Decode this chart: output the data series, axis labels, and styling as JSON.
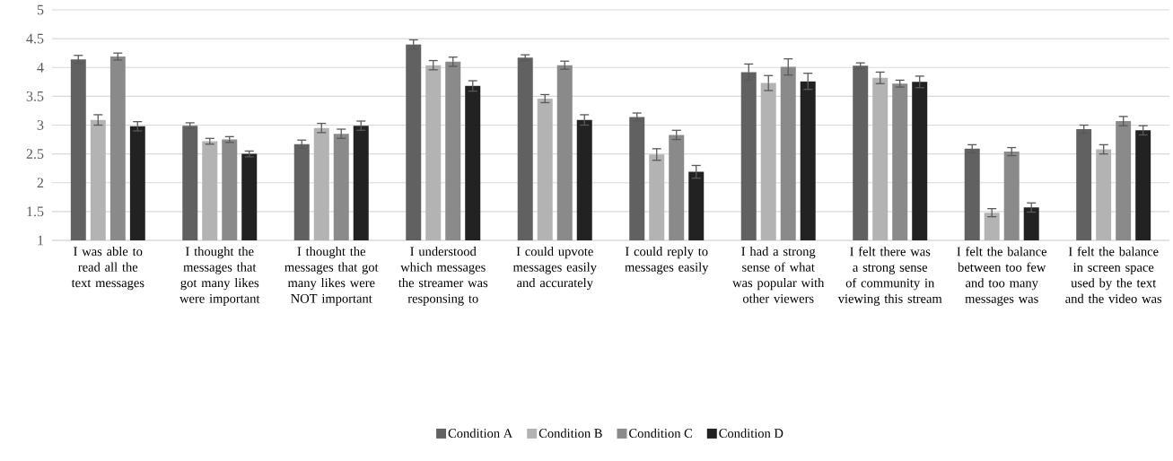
{
  "chart_data": {
    "type": "bar",
    "categories": [
      "I was able to read all the text messages",
      "I thought the messages that got many likes were important",
      "I thought the messages that got many likes were NOT important",
      "I understood which messages the streamer was responsing to",
      "I could upvote messages easily and accurately",
      "I could reply to messages easily",
      "I had a strong sense of what was popular with other viewers",
      "I felt there was a strong sense of community in viewing this stream",
      "I felt the balance between too few and too many messages was",
      "I felt the balance in screen space used by the text and the video was"
    ],
    "series": [
      {
        "name": "Condition A",
        "color": "#616161",
        "values": [
          4.14,
          2.99,
          2.67,
          4.4,
          4.17,
          3.14,
          3.92,
          4.03,
          2.59,
          2.93
        ],
        "errors": [
          0.07,
          0.05,
          0.07,
          0.08,
          0.05,
          0.07,
          0.14,
          0.05,
          0.07,
          0.07
        ]
      },
      {
        "name": "Condition B",
        "color": "#b3b3b3",
        "values": [
          3.09,
          2.72,
          2.95,
          4.04,
          3.46,
          2.49,
          3.73,
          3.82,
          1.48,
          2.58
        ],
        "errors": [
          0.09,
          0.05,
          0.08,
          0.08,
          0.07,
          0.1,
          0.13,
          0.1,
          0.07,
          0.08
        ]
      },
      {
        "name": "Condition C",
        "color": "#8a8a8a",
        "values": [
          4.19,
          2.75,
          2.85,
          4.1,
          4.04,
          2.83,
          4.01,
          3.72,
          2.54,
          3.07
        ],
        "errors": [
          0.06,
          0.05,
          0.08,
          0.08,
          0.07,
          0.08,
          0.14,
          0.06,
          0.07,
          0.08
        ]
      },
      {
        "name": "Condition D",
        "color": "#222222",
        "values": [
          2.98,
          2.5,
          2.99,
          3.68,
          3.09,
          2.19,
          3.76,
          3.75,
          1.57,
          2.91
        ],
        "errors": [
          0.08,
          0.05,
          0.08,
          0.09,
          0.09,
          0.11,
          0.14,
          0.1,
          0.08,
          0.08
        ]
      }
    ],
    "ylim": [
      1,
      5
    ],
    "yticks": [
      1,
      1.5,
      2,
      2.5,
      3,
      3.5,
      4,
      4.5,
      5
    ],
    "grid": "y",
    "legend": "bottom"
  }
}
